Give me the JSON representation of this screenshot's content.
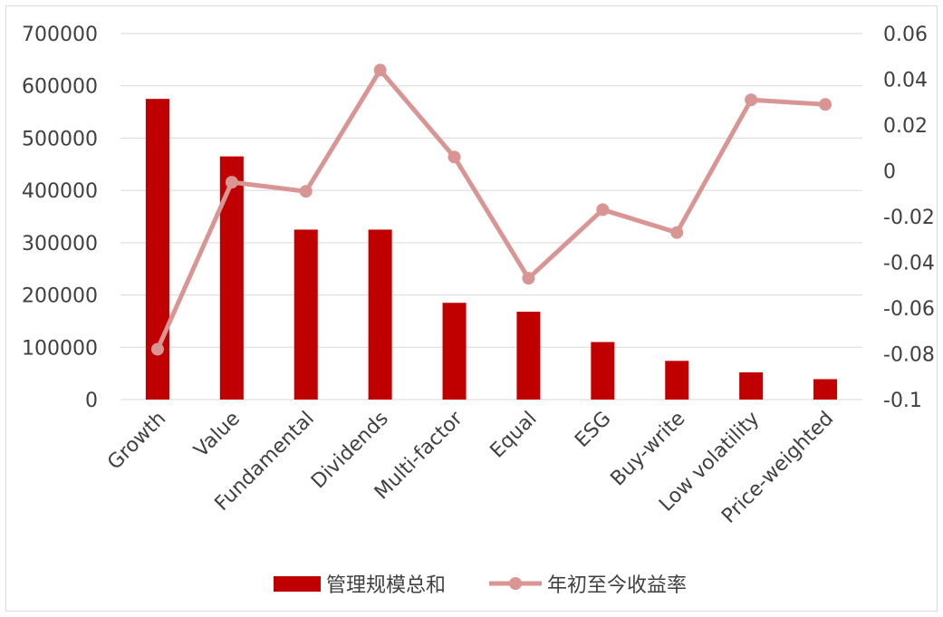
{
  "chart_data": {
    "type": "bar",
    "categories": [
      "Growth",
      "Value",
      "Fundamental",
      "Dividends",
      "Multi-factor",
      "Equal",
      "ESG",
      "Buy-write",
      "Low volatility",
      "Price-weighted"
    ],
    "series": [
      {
        "name": "管理规模总和",
        "type": "bar",
        "axis": "left",
        "color": "#c00000",
        "values": [
          575000,
          465000,
          325000,
          325000,
          185000,
          168000,
          110000,
          74000,
          52000,
          39000
        ]
      },
      {
        "name": "年初至今收益率",
        "type": "line",
        "axis": "right",
        "color": "#d99594",
        "values": [
          -0.078,
          -0.005,
          -0.009,
          0.044,
          0.006,
          -0.047,
          -0.017,
          -0.027,
          0.031,
          0.029
        ]
      }
    ],
    "y_left": {
      "ylim": [
        0,
        700000
      ],
      "ticks": [
        "0",
        "100000",
        "200000",
        "300000",
        "400000",
        "500000",
        "600000",
        "700000"
      ]
    },
    "y_right": {
      "ylim": [
        -0.1,
        0.06
      ],
      "ticks": [
        "-0.1",
        "-0.08",
        "-0.06",
        "-0.04",
        "-0.02",
        "0",
        "0.02",
        "0.04",
        "0.06"
      ]
    },
    "grid": true,
    "legend": "bottom",
    "title": "",
    "xlabel": "",
    "ylabel": ""
  }
}
